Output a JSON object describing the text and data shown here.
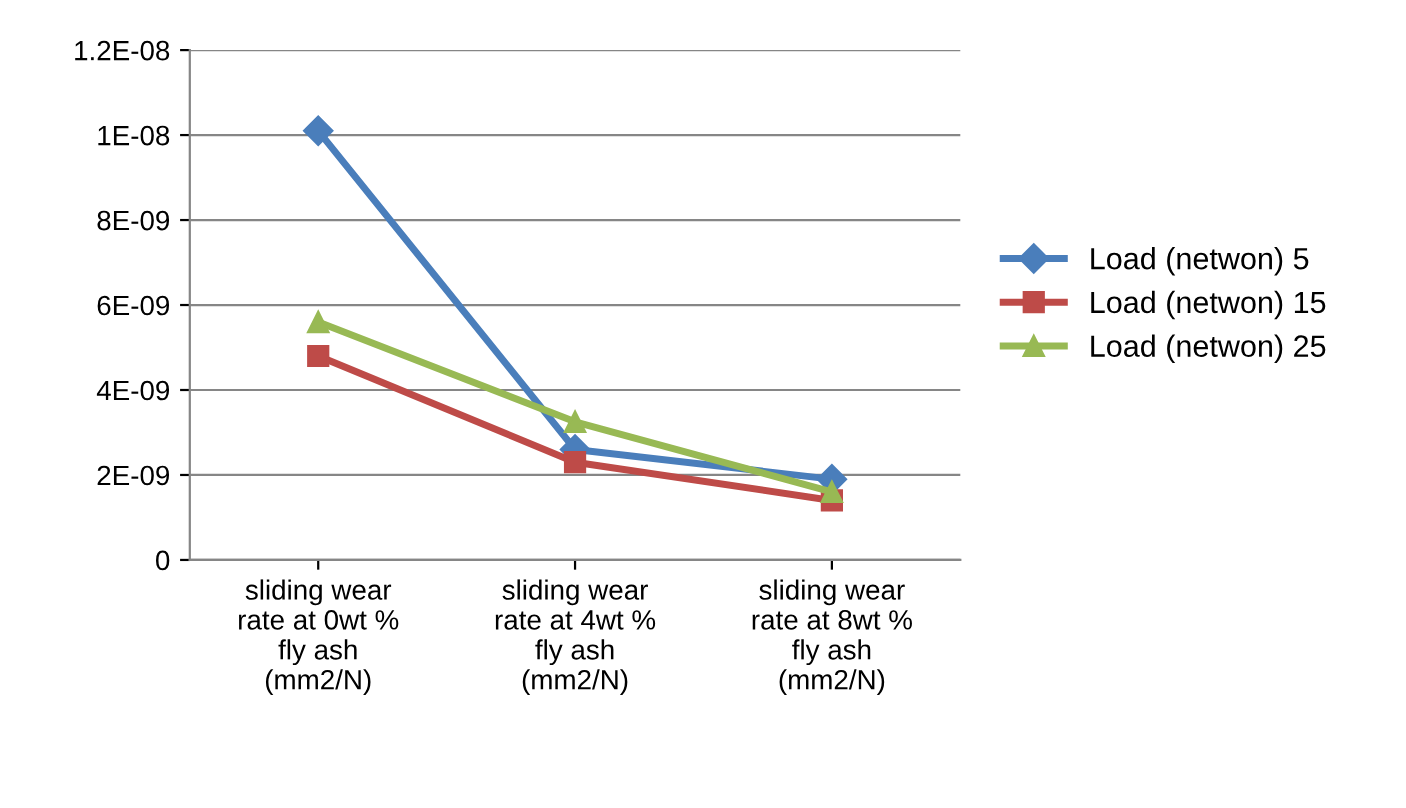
{
  "chart_data": {
    "type": "line",
    "categories": [
      "sliding wear\nrate at 0wt %\nfly ash\n(mm2/N)",
      "sliding wear\nrate at 4wt %\nfly ash\n(mm2/N)",
      "sliding wear\nrate at 8wt %\nfly ash\n(mm2/N)"
    ],
    "series": [
      {
        "name": "Load (netwon) 5",
        "color": "#4a7ebb",
        "marker": "diamond",
        "values": [
          1.01e-08,
          2.6e-09,
          1.9e-09
        ]
      },
      {
        "name": "Load (netwon) 15",
        "color": "#be4b48",
        "marker": "square",
        "values": [
          4.8e-09,
          2.3e-09,
          1.4e-09
        ]
      },
      {
        "name": "Load (netwon) 25",
        "color": "#98b954",
        "marker": "triangle",
        "values": [
          5.6e-09,
          3.25e-09,
          1.6e-09
        ]
      }
    ],
    "ylim": [
      0,
      1.2e-08
    ],
    "yticks": [
      {
        "value": 0,
        "label": "0"
      },
      {
        "value": 2e-09,
        "label": "2E-09"
      },
      {
        "value": 4e-09,
        "label": "4E-09"
      },
      {
        "value": 6e-09,
        "label": "6E-09"
      },
      {
        "value": 8e-09,
        "label": "8E-09"
      },
      {
        "value": 1e-08,
        "label": "1E-08"
      },
      {
        "value": 1.2e-08,
        "label": "1.2E-08"
      }
    ],
    "grid": "y",
    "legend": "right",
    "line_style": "solid"
  }
}
